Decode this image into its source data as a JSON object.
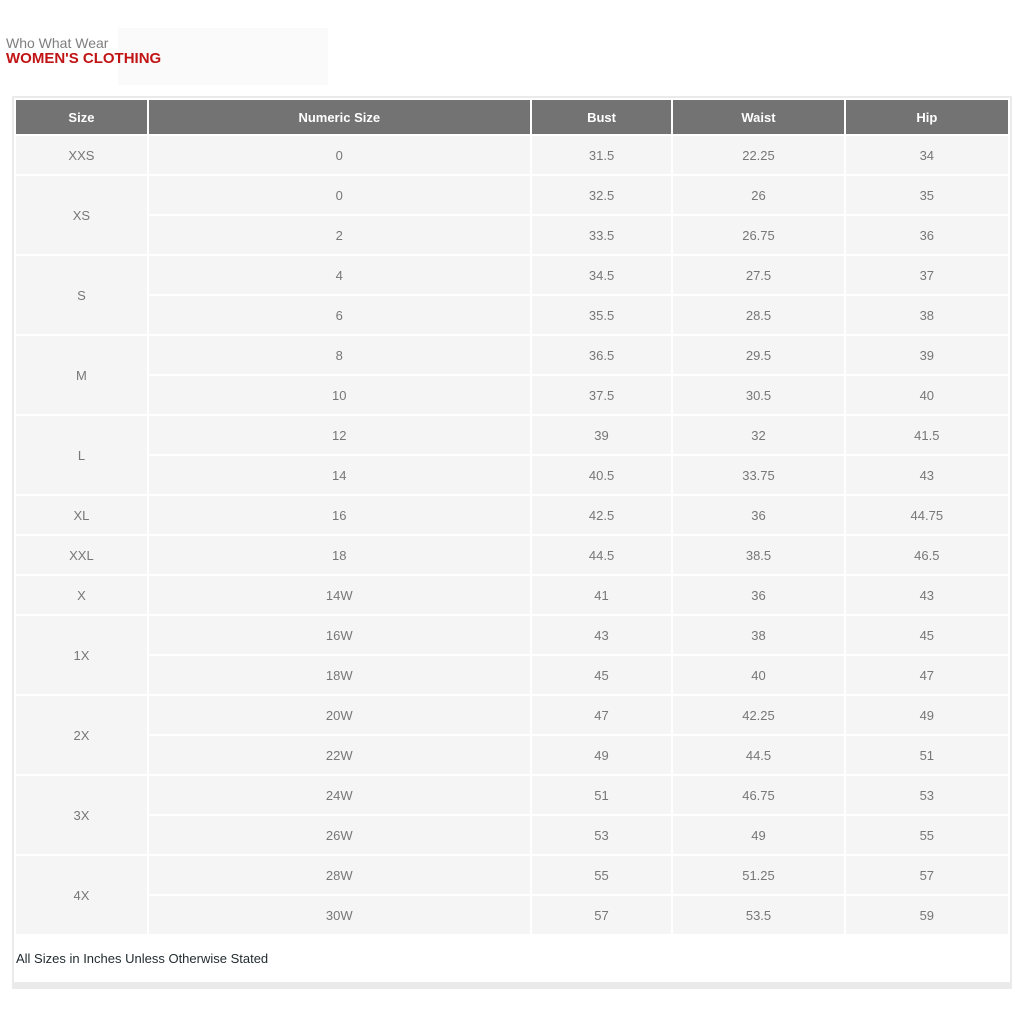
{
  "header": {
    "brand": "Who What Wear",
    "department": "WOMEN'S CLOTHING"
  },
  "table": {
    "columns": [
      "Size",
      "Numeric Size",
      "Bust",
      "Waist",
      "Hip"
    ],
    "groups": [
      {
        "size": "XXS",
        "rows": [
          [
            "0",
            "31.5",
            "22.25",
            "34"
          ]
        ]
      },
      {
        "size": "XS",
        "rows": [
          [
            "0",
            "32.5",
            "26",
            "35"
          ],
          [
            "2",
            "33.5",
            "26.75",
            "36"
          ]
        ]
      },
      {
        "size": "S",
        "rows": [
          [
            "4",
            "34.5",
            "27.5",
            "37"
          ],
          [
            "6",
            "35.5",
            "28.5",
            "38"
          ]
        ]
      },
      {
        "size": "M",
        "rows": [
          [
            "8",
            "36.5",
            "29.5",
            "39"
          ],
          [
            "10",
            "37.5",
            "30.5",
            "40"
          ]
        ]
      },
      {
        "size": "L",
        "rows": [
          [
            "12",
            "39",
            "32",
            "41.5"
          ],
          [
            "14",
            "40.5",
            "33.75",
            "43"
          ]
        ]
      },
      {
        "size": "XL",
        "rows": [
          [
            "16",
            "42.5",
            "36",
            "44.75"
          ]
        ]
      },
      {
        "size": "XXL",
        "rows": [
          [
            "18",
            "44.5",
            "38.5",
            "46.5"
          ]
        ]
      },
      {
        "size": "X",
        "rows": [
          [
            "14W",
            "41",
            "36",
            "43"
          ]
        ]
      },
      {
        "size": "1X",
        "rows": [
          [
            "16W",
            "43",
            "38",
            "45"
          ],
          [
            "18W",
            "45",
            "40",
            "47"
          ]
        ]
      },
      {
        "size": "2X",
        "rows": [
          [
            "20W",
            "47",
            "42.25",
            "49"
          ],
          [
            "22W",
            "49",
            "44.5",
            "51"
          ]
        ]
      },
      {
        "size": "3X",
        "rows": [
          [
            "24W",
            "51",
            "46.75",
            "53"
          ],
          [
            "26W",
            "53",
            "49",
            "55"
          ]
        ]
      },
      {
        "size": "4X",
        "rows": [
          [
            "28W",
            "55",
            "51.25",
            "57"
          ],
          [
            "30W",
            "57",
            "53.5",
            "59"
          ]
        ]
      }
    ]
  },
  "footer": {
    "note": "All Sizes in Inches Unless Otherwise Stated"
  },
  "colors": {
    "header_bg": "#737373",
    "row_bg": "#f5f5f5",
    "accent_red": "#c11414",
    "cell_text": "#777777"
  }
}
